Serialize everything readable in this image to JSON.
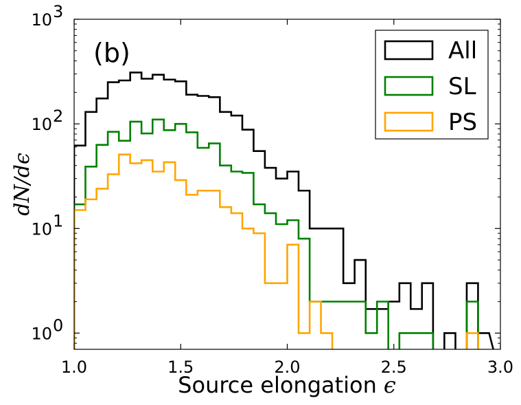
{
  "chart_data": {
    "type": "line",
    "subtype": "step histogram",
    "panel_label": "(b)",
    "xlabel": "Source elongation",
    "xlabel_symbol": "ϵ",
    "ylabel": "dN/dϵ",
    "xlim": [
      1.0,
      3.0
    ],
    "ylim": [
      0.7,
      1000
    ],
    "yscale": "log",
    "grid": false,
    "legend_position": "top-right",
    "x_ticks": [
      "1.0",
      "1.5",
      "2.0",
      "2.5",
      "3.0"
    ],
    "y_ticks": [
      {
        "base": "10",
        "exp": "0",
        "value": 1
      },
      {
        "base": "10",
        "exp": "1",
        "value": 10
      },
      {
        "base": "10",
        "exp": "2",
        "value": 100
      },
      {
        "base": "10",
        "exp": "3",
        "value": 1000
      }
    ],
    "bin_edges": [
      1.0,
      1.053,
      1.105,
      1.158,
      1.21,
      1.263,
      1.316,
      1.368,
      1.421,
      1.474,
      1.526,
      1.579,
      1.632,
      1.684,
      1.737,
      1.789,
      1.842,
      1.895,
      1.947,
      2.0,
      2.053,
      2.105,
      2.158,
      2.211,
      2.263,
      2.316,
      2.368,
      2.421,
      2.474,
      2.526,
      2.579,
      2.632,
      2.684,
      2.737,
      2.789,
      2.842,
      2.895,
      2.947
    ],
    "series": [
      {
        "name": "All",
        "color": "#000000",
        "values": [
          62,
          130,
          175,
          250,
          260,
          310,
          270,
          295,
          265,
          255,
          190,
          185,
          180,
          130,
          120,
          88,
          55,
          38,
          30,
          35,
          23,
          10,
          10,
          10,
          3,
          5,
          1.7,
          1.7,
          2,
          3,
          1.7,
          3,
          0.5,
          1,
          0.5,
          3,
          1
        ]
      },
      {
        "name": "SL",
        "color": "#008000",
        "values": [
          17,
          39,
          63,
          84,
          69,
          105,
          81,
          110,
          87,
          100,
          83,
          59,
          65,
          40,
          35,
          34,
          17,
          14,
          11,
          12,
          8,
          2,
          2,
          2,
          2,
          2,
          1,
          2,
          0.5,
          1,
          1,
          1,
          0.5,
          0.5,
          0.5,
          2,
          0.5
        ]
      },
      {
        "name": "PS",
        "color": "#FFA500",
        "values": [
          15,
          19,
          24,
          33,
          51,
          42,
          45,
          35,
          43,
          29,
          21,
          23,
          23,
          16,
          14,
          10,
          9,
          3,
          3,
          7,
          1,
          2,
          1,
          0.5,
          0.5,
          0.5,
          0.5,
          0.5,
          0.5,
          0.5,
          0.5,
          0.5,
          0.5,
          0.5,
          0.5,
          1,
          0.5
        ]
      }
    ]
  }
}
